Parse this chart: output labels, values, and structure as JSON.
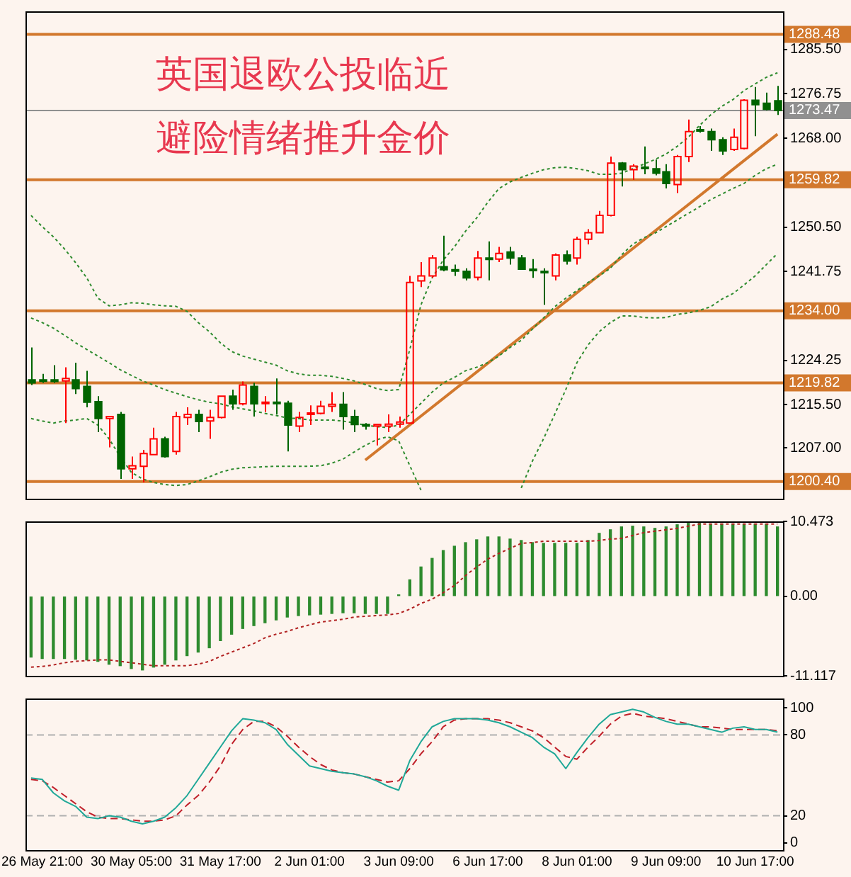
{
  "chart_data": [
    {
      "type": "candlestick",
      "tick_labels": "y",
      "annotations": [
        "英国退欧公投临近",
        "避险情绪推升金价"
      ],
      "categories": [
        null,
        null,
        null,
        null,
        null,
        null,
        null,
        null,
        null,
        null,
        null,
        null,
        null,
        null,
        null,
        null,
        null,
        null,
        null,
        null,
        null,
        null,
        null,
        null,
        null,
        null,
        null,
        null,
        null,
        null,
        null,
        null,
        null,
        null,
        null,
        null,
        null,
        null,
        null,
        null,
        null,
        null,
        null,
        null,
        null,
        null,
        null,
        null,
        null,
        null,
        null,
        null,
        null,
        null,
        null,
        null,
        null,
        null,
        null,
        null,
        null,
        null,
        null,
        null,
        null,
        null,
        null,
        null
      ],
      "ohlc": [
        [
          1220.4,
          1226.8,
          1219.4,
          1219.8
        ],
        [
          1220.4,
          1221.6,
          1219.8,
          1220.2
        ],
        [
          1220.4,
          1223.3,
          1219.8,
          1220.1
        ],
        [
          1220.2,
          1222.9,
          1211.9,
          1220.7
        ],
        [
          1220.4,
          1223.8,
          1217.6,
          1218.7
        ],
        [
          1219.1,
          1222.2,
          1215.0,
          1216.0
        ],
        [
          1216.1,
          1217.2,
          1210.1,
          1212.8
        ],
        [
          1212.8,
          1213.2,
          1207.1,
          1213.2
        ],
        [
          1213.6,
          1214.1,
          1200.9,
          1202.9
        ],
        [
          1202.9,
          1205.3,
          1200.9,
          1203.5
        ],
        [
          1203.4,
          1206.6,
          1200.2,
          1205.9
        ],
        [
          1205.7,
          1211.0,
          1205.7,
          1208.8
        ],
        [
          1208.8,
          1209.2,
          1205.1,
          1205.3
        ],
        [
          1206.3,
          1214.1,
          1205.7,
          1213.2
        ],
        [
          1213.0,
          1215.0,
          1211.5,
          1213.6
        ],
        [
          1213.6,
          1214.5,
          1210.1,
          1212.2
        ],
        [
          1212.3,
          1214.5,
          1208.8,
          1213.0
        ],
        [
          1213.0,
          1217.2,
          1212.8,
          1217.2
        ],
        [
          1217.2,
          1218.5,
          1214.5,
          1215.7
        ],
        [
          1215.7,
          1220.1,
          1215.4,
          1219.4
        ],
        [
          1219.1,
          1219.8,
          1213.2,
          1215.7
        ],
        [
          1215.8,
          1217.2,
          1214.1,
          1216.0
        ],
        [
          1216.0,
          1220.7,
          1213.6,
          1215.8
        ],
        [
          1215.8,
          1216.3,
          1206.3,
          1211.5
        ],
        [
          1211.3,
          1214.1,
          1210.1,
          1213.0
        ],
        [
          1213.6,
          1215.4,
          1211.5,
          1213.9
        ],
        [
          1213.8,
          1216.3,
          1213.6,
          1215.2
        ],
        [
          1215.2,
          1218.0,
          1214.1,
          1215.6
        ],
        [
          1215.6,
          1218.0,
          1210.6,
          1213.2
        ],
        [
          1213.2,
          1214.5,
          1210.1,
          1211.6
        ],
        [
          1211.6,
          1211.9,
          1210.6,
          1211.3
        ],
        [
          1211.3,
          1211.6,
          1207.5,
          1211.6
        ],
        [
          1211.3,
          1213.6,
          1210.1,
          1211.7
        ],
        [
          1211.7,
          1213.2,
          1211.0,
          1212.1
        ],
        [
          1211.9,
          1240.9,
          1211.9,
          1239.6
        ],
        [
          1239.9,
          1243.6,
          1238.7,
          1240.9
        ],
        [
          1240.9,
          1245.0,
          1240.5,
          1244.4
        ],
        [
          1242.7,
          1248.8,
          1241.8,
          1242.1
        ],
        [
          1242.1,
          1243.1,
          1240.9,
          1241.9
        ],
        [
          1241.8,
          1242.4,
          1240.0,
          1240.5
        ],
        [
          1240.6,
          1245.8,
          1240.0,
          1244.4
        ],
        [
          1244.4,
          1247.7,
          1240.0,
          1244.2
        ],
        [
          1244.2,
          1246.6,
          1243.6,
          1245.3
        ],
        [
          1245.6,
          1246.6,
          1243.1,
          1244.4
        ],
        [
          1244.4,
          1245.0,
          1242.1,
          1242.2
        ],
        [
          1242.2,
          1244.2,
          1240.5,
          1242.0
        ],
        [
          1241.8,
          1242.4,
          1235.2,
          1241.5
        ],
        [
          1240.9,
          1245.3,
          1240.0,
          1245.0
        ],
        [
          1245.0,
          1245.9,
          1243.1,
          1243.8
        ],
        [
          1244.4,
          1248.6,
          1243.1,
          1248.1
        ],
        [
          1248.1,
          1250.1,
          1247.1,
          1249.4
        ],
        [
          1249.4,
          1253.7,
          1249.3,
          1252.8
        ],
        [
          1252.8,
          1264.4,
          1252.6,
          1263.1
        ],
        [
          1263.1,
          1263.3,
          1258.5,
          1261.8
        ],
        [
          1261.8,
          1262.9,
          1259.8,
          1262.5
        ],
        [
          1262.3,
          1266.4,
          1260.9,
          1262.2
        ],
        [
          1262.0,
          1263.8,
          1260.7,
          1261.1
        ],
        [
          1261.4,
          1262.9,
          1258.1,
          1259.1
        ],
        [
          1258.9,
          1264.7,
          1257.2,
          1264.4
        ],
        [
          1264.4,
          1271.7,
          1263.3,
          1269.3
        ],
        [
          1269.7,
          1270.4,
          1269.1,
          1269.5
        ],
        [
          1269.3,
          1269.9,
          1265.5,
          1267.7
        ],
        [
          1267.7,
          1268.2,
          1264.7,
          1265.5
        ],
        [
          1265.8,
          1269.9,
          1265.5,
          1268.2
        ],
        [
          1266.0,
          1275.7,
          1265.8,
          1275.5
        ],
        [
          1275.5,
          1278.1,
          1268.4,
          1274.6
        ],
        [
          1274.9,
          1277.0,
          1273.5,
          1273.7
        ],
        [
          1275.4,
          1278.3,
          1272.6,
          1273.47
        ]
      ],
      "colors": [
        "#006400",
        "#006400",
        "#006400",
        "#ff0000",
        "#006400",
        "#006400",
        "#006400",
        "#ff0000",
        "#006400",
        "#ff0000",
        "#ff0000",
        "#ff0000",
        "#006400",
        "#ff0000",
        "#ff0000",
        "#006400",
        "#ff0000",
        "#ff0000",
        "#006400",
        "#ff0000",
        "#006400",
        "#ff0000",
        "#006400",
        "#006400",
        "#ff0000",
        "#ff0000",
        "#ff0000",
        "#ff0000",
        "#006400",
        "#006400",
        "#006400",
        "#ff0000",
        "#ff0000",
        "#ff0000",
        "#ff0000",
        "#ff0000",
        "#ff0000",
        "#006400",
        "#006400",
        "#006400",
        "#ff0000",
        "#006400",
        "#ff0000",
        "#006400",
        "#006400",
        "#006400",
        "#006400",
        "#ff0000",
        "#006400",
        "#ff0000",
        "#ff0000",
        "#ff0000",
        "#ff0000",
        "#006400",
        "#ff0000",
        "#006400",
        "#006400",
        "#006400",
        "#ff0000",
        "#ff0000",
        "#006400",
        "#006400",
        "#006400",
        "#ff0000",
        "#ff0000",
        "#006400",
        "#006400",
        "#006400"
      ],
      "series": [
        {
          "type": "line",
          "color": "#2e8b2e",
          "line_style": "dotted",
          "values": [
            1252.8,
            1250.6,
            1248.6,
            1246.2,
            1243.5,
            1240.5,
            1236.5,
            1235.0,
            1235.2,
            1235.6,
            1235.5,
            1235.2,
            1235.0,
            1234.9,
            1233.9,
            1231.7,
            1229.9,
            1227.7,
            1226.0,
            1225.1,
            1224.5,
            1223.9,
            1223.3,
            1222.2,
            1221.6,
            1221.3,
            1221.3,
            1221.1,
            1220.7,
            1220.2,
            1219.5,
            1218.7,
            1218.3,
            1218.5,
            1226.4,
            1235.2,
            1240.5,
            1244.0,
            1246.6,
            1249.7,
            1252.3,
            1255.4,
            1258.1,
            1259.4,
            1260.3,
            1261.1,
            1261.8,
            1262.2,
            1262.3,
            1262.0,
            1261.6,
            1260.9,
            1260.9,
            1261.1,
            1262.0,
            1262.9,
            1263.8,
            1264.9,
            1266.4,
            1268.2,
            1270.5,
            1272.6,
            1274.3,
            1275.6,
            1277.4,
            1278.7,
            1280.0,
            1280.9
          ]
        },
        {
          "type": "line",
          "color": "#2e8b2e",
          "line_style": "dotted",
          "values": [
            1232.6,
            1231.7,
            1230.6,
            1229.2,
            1227.7,
            1226.4,
            1225.1,
            1223.8,
            1222.4,
            1221.3,
            1220.2,
            1219.4,
            1218.5,
            1217.8,
            1217.1,
            1216.5,
            1216.0,
            1215.7,
            1215.1,
            1214.7,
            1214.3,
            1213.8,
            1213.4,
            1212.9,
            1212.8,
            1212.5,
            1212.5,
            1212.5,
            1212.3,
            1211.9,
            1211.5,
            1211.2,
            1211.0,
            1211.5,
            1213.6,
            1215.8,
            1218.0,
            1219.8,
            1220.9,
            1222.2,
            1222.9,
            1223.8,
            1225.1,
            1226.8,
            1228.2,
            1230.4,
            1232.6,
            1234.8,
            1236.5,
            1238.0,
            1239.6,
            1240.9,
            1242.4,
            1245.0,
            1247.1,
            1248.4,
            1249.3,
            1250.6,
            1251.9,
            1253.2,
            1254.5,
            1255.9,
            1257.0,
            1258.1,
            1259.1,
            1260.7,
            1262.0,
            1262.9
          ]
        },
        {
          "type": "line",
          "color": "#2e8b2e",
          "line_style": "dotted",
          "values": [
            1212.8,
            1212.3,
            1211.9,
            1212.3,
            1212.5,
            1212.8,
            1211.5,
            1208.8,
            1205.3,
            1202.2,
            1200.9,
            1200.2,
            1199.8,
            1199.6,
            1199.8,
            1200.5,
            1201.3,
            1202.2,
            1202.8,
            1203.1,
            1203.2,
            1203.3,
            1203.4,
            1203.4,
            1203.4,
            1203.4,
            1203.5,
            1204.0,
            1204.8,
            1206.2,
            1207.5,
            1208.6,
            1209.2,
            1208.4,
            1203.5,
            1198.7,
            null,
            null,
            null,
            null,
            null,
            null,
            null,
            null,
            1199.1,
            1204.4,
            1208.8,
            1213.6,
            1218.5,
            1223.8,
            1227.3,
            1229.9,
            1231.7,
            1233.0,
            1233.0,
            1232.7,
            1232.6,
            1232.7,
            1233.3,
            1233.6,
            1234.1,
            1234.8,
            1236.3,
            1237.4,
            1239.1,
            1240.9,
            1243.1,
            1245.3
          ]
        },
        {
          "type": "line",
          "color": "#d2782d",
          "values": [
            null,
            null,
            null,
            null,
            null,
            null,
            null,
            null,
            null,
            null,
            null,
            null,
            null,
            null,
            null,
            null,
            null,
            null,
            null,
            null,
            null,
            null,
            null,
            null,
            null,
            null,
            null,
            null,
            null,
            null,
            1204.6,
            null,
            null,
            null,
            null,
            null,
            null,
            null,
            null,
            null,
            null,
            null,
            null,
            null,
            null,
            null,
            null,
            null,
            null,
            null,
            null,
            null,
            null,
            null,
            null,
            null,
            null,
            null,
            null,
            null,
            null,
            null,
            null,
            null,
            null,
            null,
            null,
            1268.8
          ]
        }
      ],
      "ylim": [
        1197,
        1293
      ],
      "yticks": [
        {
          "value": 1285.5,
          "label": "1285.50"
        },
        {
          "value": 1276.75,
          "label": "1276.75"
        },
        {
          "value": 1268,
          "label": "1268.00"
        },
        {
          "value": 1250.5,
          "label": "1250.50"
        },
        {
          "value": 1241.75,
          "label": "1241.75"
        },
        {
          "value": 1224.25,
          "label": "1224.25"
        },
        {
          "value": 1215.5,
          "label": "1215.50"
        },
        {
          "value": 1207,
          "label": "1207.00"
        }
      ],
      "ref_lines": [
        {
          "axis": "y",
          "value": 1288.48,
          "label": "1288.48",
          "color": "#d2782d"
        },
        {
          "axis": "y",
          "value": 1273.47,
          "label": "1273.47",
          "color": "#909090"
        },
        {
          "axis": "y",
          "value": 1259.82,
          "label": "1259.82",
          "color": "#d2782d"
        },
        {
          "axis": "y",
          "value": 1234.0,
          "label": "1234.00",
          "color": "#d2782d"
        },
        {
          "axis": "y",
          "value": 1219.82,
          "label": "1219.82",
          "color": "#d2782d"
        },
        {
          "axis": "y",
          "value": 1200.4,
          "label": "1200.40",
          "color": "#d2782d"
        }
      ]
    },
    {
      "type": "bar",
      "tick_labels": "y",
      "categories": [
        null,
        null,
        null,
        null,
        null,
        null,
        null,
        null,
        null,
        null,
        null,
        null,
        null,
        null,
        null,
        null,
        null,
        null,
        null,
        null,
        null,
        null,
        null,
        null,
        null,
        null,
        null,
        null,
        null,
        null,
        null,
        null,
        null,
        null,
        null,
        null,
        null,
        null,
        null,
        null,
        null,
        null,
        null,
        null,
        null,
        null,
        null,
        null,
        null,
        null,
        null,
        null,
        null,
        null,
        null,
        null,
        null,
        null,
        null,
        null,
        null,
        null,
        null,
        null,
        null,
        null,
        null,
        null
      ],
      "series": [
        {
          "type": "bar",
          "color": "#2e8b2e",
          "values": [
            -8.5,
            -8.7,
            -8.7,
            -8.7,
            -8.8,
            -8.9,
            -9.1,
            -9.5,
            -9.7,
            -10.1,
            -10.3,
            -9.9,
            -9.5,
            -8.9,
            -8.3,
            -7.8,
            -7.2,
            -6.2,
            -5.3,
            -4.5,
            -4.1,
            -3.7,
            -3.3,
            -2.9,
            -2.7,
            -2.6,
            -2.5,
            -2.4,
            -2.3,
            -2.3,
            -2.4,
            -2.4,
            -2.4,
            0.2,
            2.3,
            4.1,
            5.3,
            6.4,
            7.0,
            7.5,
            7.9,
            8.3,
            8.3,
            8.0,
            7.8,
            7.5,
            7.4,
            7.4,
            7.4,
            7.4,
            7.8,
            8.8,
            9.3,
            9.7,
            9.8,
            9.7,
            9.5,
            9.7,
            10.0,
            10.2,
            10.2,
            10.1,
            10.1,
            10.1,
            10.1,
            10.1,
            10.1,
            9.7
          ]
        },
        {
          "type": "line",
          "color": "#b22222",
          "line_style": "dotted",
          "values": [
            -9.9,
            -9.8,
            -9.6,
            -9.3,
            -9.1,
            -9.0,
            -8.9,
            -8.9,
            -9.1,
            -9.3,
            -9.5,
            -9.7,
            -9.7,
            -9.7,
            -9.7,
            -9.5,
            -9.1,
            -8.4,
            -7.8,
            -7.2,
            -6.6,
            -5.8,
            -5.3,
            -4.9,
            -4.4,
            -4.0,
            -3.6,
            -3.4,
            -3.2,
            -2.9,
            -2.8,
            -2.7,
            -2.6,
            -2.4,
            -1.8,
            -1.0,
            -0.4,
            0.5,
            1.5,
            2.9,
            4.1,
            5.2,
            6.0,
            6.7,
            7.4,
            7.5,
            7.7,
            7.7,
            7.7,
            7.7,
            7.7,
            7.8,
            8.0,
            8.1,
            8.5,
            8.9,
            9.1,
            9.3,
            9.5,
            9.8,
            10.1,
            10.1,
            10.1,
            10.1,
            10.1,
            10.1,
            10.1,
            10.1
          ]
        }
      ],
      "ylim": [
        -11.117,
        10.473
      ],
      "yticks": [
        10.473,
        {
          "value": 0,
          "label": "0.00"
        },
        -11.117
      ]
    },
    {
      "type": "line",
      "categories": [
        null,
        "26 May 21:00",
        null,
        null,
        null,
        null,
        null,
        null,
        null,
        "30 May 05:00",
        null,
        null,
        null,
        null,
        null,
        null,
        null,
        "31 May 17:00",
        null,
        null,
        null,
        null,
        null,
        null,
        null,
        "2 Jun 01:00",
        null,
        null,
        null,
        null,
        null,
        null,
        null,
        "3 Jun 09:00",
        null,
        null,
        null,
        null,
        null,
        null,
        null,
        "6 Jun 17:00",
        null,
        null,
        null,
        null,
        null,
        null,
        null,
        "8 Jun 01:00",
        null,
        null,
        null,
        null,
        null,
        null,
        null,
        "9 Jun 09:00",
        null,
        null,
        null,
        null,
        null,
        null,
        null,
        "10 Jun 17:00",
        null,
        null
      ],
      "series": [
        {
          "color": "#20a898",
          "values": [
            48,
            47,
            37,
            31,
            27,
            19,
            18,
            20,
            19,
            16,
            14,
            16,
            19,
            26,
            35,
            47,
            59,
            71,
            83,
            92,
            91,
            89,
            84,
            73,
            65,
            57,
            55,
            53,
            52,
            51,
            49,
            46,
            42,
            39,
            61,
            75,
            86,
            90,
            92,
            92,
            92,
            91,
            89,
            86,
            82,
            78,
            71,
            66,
            55,
            67,
            78,
            88,
            95,
            97,
            99,
            97,
            93,
            90,
            88,
            88,
            86,
            84,
            82,
            85,
            86,
            84,
            84,
            82
          ]
        },
        {
          "color": "#c0202a",
          "line_style": "dashed",
          "values": [
            47,
            46,
            41,
            35,
            29,
            23,
            19,
            18,
            18,
            17,
            16,
            16,
            17,
            20,
            28,
            35,
            45,
            57,
            73,
            84,
            90,
            90,
            86,
            79,
            71,
            64,
            58,
            54,
            52,
            51,
            49,
            47,
            45,
            46,
            55,
            66,
            75,
            86,
            91,
            92,
            92,
            92,
            91,
            89,
            86,
            83,
            78,
            71,
            64,
            62,
            71,
            79,
            88,
            94,
            96,
            94,
            93,
            92,
            90,
            88,
            86,
            86,
            85,
            84,
            84,
            84,
            84,
            83
          ]
        }
      ],
      "ylim": [
        -5,
        107
      ],
      "yticks": [
        100,
        80,
        20,
        0
      ],
      "ref_lines": [
        {
          "axis": "y",
          "value": 80,
          "color": "#b0b0b0",
          "line_style": "dashed"
        },
        {
          "axis": "y",
          "value": 20,
          "color": "#b0b0b0",
          "line_style": "dashed"
        }
      ]
    }
  ]
}
